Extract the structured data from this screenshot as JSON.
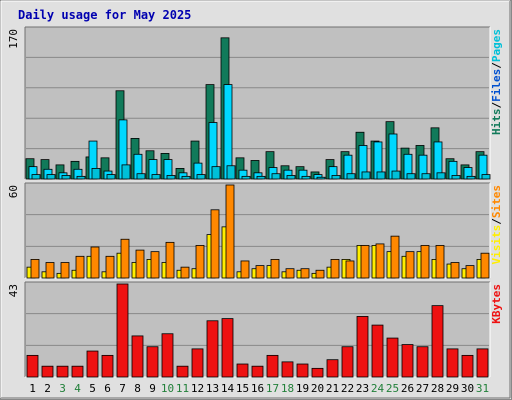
{
  "title": "Daily usage for May 2025",
  "colors": {
    "background": "#ffffff",
    "frame": "#e0e0e0",
    "plot_bg": "#c0c0c0",
    "gridline": "#888888",
    "title_text": "#0000b0",
    "weekday_label": "#000000",
    "weekend_label": "#22803a",
    "hits": "#117a5a",
    "files": "#00d8ff",
    "pages": "#00c0d8",
    "visits": "#ffee00",
    "sites": "#ff8800",
    "kbytes": "#ee1111",
    "legend_sep": "#000000"
  },
  "chart_data": {
    "type": "bar",
    "title": "Daily usage for May 2025",
    "categories": [
      "1",
      "2",
      "3",
      "4",
      "5",
      "6",
      "7",
      "8",
      "9",
      "10",
      "11",
      "12",
      "13",
      "14",
      "15",
      "16",
      "17",
      "18",
      "19",
      "20",
      "21",
      "22",
      "23",
      "24",
      "25",
      "26",
      "27",
      "28",
      "29",
      "30",
      "31"
    ],
    "weekend_days": [
      "3",
      "4",
      "10",
      "11",
      "17",
      "18",
      "24",
      "25",
      "31"
    ],
    "panels": [
      {
        "id": "hits-files-pages",
        "ymax_label": "170",
        "ylim": [
          0,
          170
        ],
        "legend": [
          {
            "name": "Hits",
            "color": "#117a5a"
          },
          {
            "name": "Files",
            "color": "#0050d0"
          },
          {
            "name": "Pages",
            "color": "#00c0d8"
          }
        ],
        "series": [
          {
            "name": "Hits",
            "color": "#117a5a",
            "values": [
              23,
              22,
              16,
              20,
              25,
              24,
              100,
              46,
              32,
              29,
              12,
              43,
              107,
              160,
              24,
              21,
              31,
              15,
              14,
              8,
              22,
              31,
              53,
              43,
              65,
              35,
              38,
              58,
              23,
              16,
              31
            ]
          },
          {
            "name": "Files",
            "color": "#00d8ff",
            "values": [
              14,
              11,
              7,
              11,
              43,
              9,
              67,
              28,
              22,
              22,
              7,
              18,
              64,
              107,
              10,
              7,
              13,
              10,
              10,
              5,
              14,
              27,
              38,
              42,
              51,
              28,
              27,
              42,
              20,
              13,
              27
            ]
          },
          {
            "name": "Pages",
            "color": "#00c0d8",
            "values": [
              5,
              5,
              4,
              3,
              12,
              5,
              16,
              6,
              5,
              4,
              3,
              5,
              14,
              15,
              3,
              3,
              6,
              4,
              3,
              2,
              4,
              6,
              8,
              8,
              9,
              6,
              6,
              7,
              4,
              3,
              5
            ]
          }
        ]
      },
      {
        "id": "visits-sites",
        "ymax_label": "60",
        "ylim": [
          0,
          60
        ],
        "legend": [
          {
            "name": "Visits",
            "color": "#ffee00"
          },
          {
            "name": "Sites",
            "color": "#ff8800"
          }
        ],
        "series": [
          {
            "name": "Visits",
            "color": "#ffee00",
            "values": [
              7,
              4,
              3,
              5,
              14,
              4,
              16,
              10,
              12,
              10,
              5,
              6,
              28,
              33,
              4,
              6,
              8,
              4,
              5,
              3,
              7,
              12,
              21,
              21,
              17,
              14,
              17,
              12,
              9,
              6,
              12
            ]
          },
          {
            "name": "Sites",
            "color": "#ff8800",
            "values": [
              12,
              10,
              10,
              14,
              20,
              14,
              25,
              18,
              17,
              23,
              7,
              21,
              44,
              60,
              11,
              8,
              12,
              6,
              6,
              5,
              12,
              11,
              21,
              22,
              27,
              17,
              21,
              21,
              10,
              8,
              16
            ]
          }
        ]
      },
      {
        "id": "kbytes",
        "ymax_label": "43",
        "ylim": [
          0,
          43
        ],
        "legend": [
          {
            "name": "KBytes",
            "color": "#ee1111"
          }
        ],
        "series": [
          {
            "name": "KBytes",
            "color": "#ee1111",
            "values": [
              10,
              5,
              5,
              5,
              12,
              10,
              43,
              19,
              14,
              20,
              5,
              13,
              26,
              27,
              6,
              5,
              10,
              7,
              6,
              4,
              8,
              14,
              28,
              24,
              18,
              15,
              14,
              33,
              13,
              10,
              13
            ]
          }
        ]
      }
    ]
  }
}
